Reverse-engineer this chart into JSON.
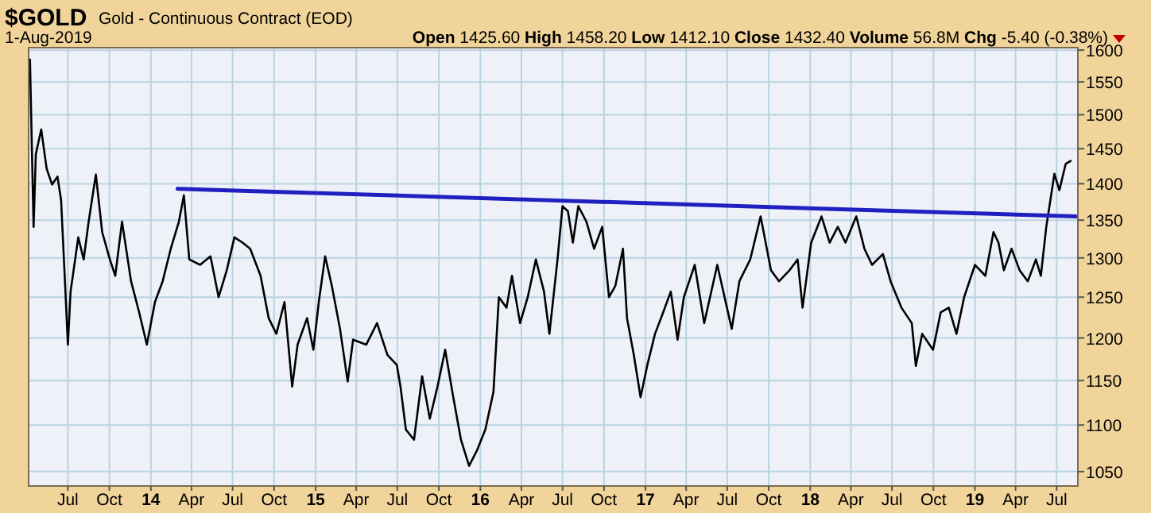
{
  "chart_data": {
    "type": "line",
    "title": "$GOLD",
    "subtitle": "Gold - Continuous Contract (EOD)",
    "annotations": [
      "1-Aug-2019",
      "Open 1425.60",
      "High 1458.20",
      "Low 1412.10",
      "Close 1432.40",
      "Volume 56.8M",
      "Chg -5.40 (-0.38%)"
    ],
    "log": "y",
    "grid": true,
    "marker": "none",
    "line_style": "solid",
    "xlim": [
      "2013-04-05",
      "2019-08-17"
    ],
    "xticks": [
      {
        "value": "2013-07-01",
        "label": "Jul"
      },
      {
        "value": "2013-10-01",
        "label": "Oct"
      },
      {
        "value": "2014-01-01",
        "label": "14"
      },
      {
        "value": "2014-04-01",
        "label": "Apr"
      },
      {
        "value": "2014-07-01",
        "label": "Jul"
      },
      {
        "value": "2014-10-01",
        "label": "Oct"
      },
      {
        "value": "2015-01-01",
        "label": "15"
      },
      {
        "value": "2015-04-01",
        "label": "Apr"
      },
      {
        "value": "2015-07-01",
        "label": "Jul"
      },
      {
        "value": "2015-10-01",
        "label": "Oct"
      },
      {
        "value": "2016-01-01",
        "label": "16"
      },
      {
        "value": "2016-04-01",
        "label": "Apr"
      },
      {
        "value": "2016-07-01",
        "label": "Jul"
      },
      {
        "value": "2016-10-01",
        "label": "Oct"
      },
      {
        "value": "2017-01-01",
        "label": "17"
      },
      {
        "value": "2017-04-01",
        "label": "Apr"
      },
      {
        "value": "2017-07-01",
        "label": "Jul"
      },
      {
        "value": "2017-10-01",
        "label": "Oct"
      },
      {
        "value": "2018-01-01",
        "label": "18"
      },
      {
        "value": "2018-04-01",
        "label": "Apr"
      },
      {
        "value": "2018-07-01",
        "label": "Jul"
      },
      {
        "value": "2018-10-01",
        "label": "Oct"
      },
      {
        "value": "2019-01-01",
        "label": "19"
      },
      {
        "value": "2019-04-01",
        "label": "Apr"
      },
      {
        "value": "2019-07-01",
        "label": "Jul"
      }
    ],
    "ylim": [
      1035,
      1604
    ],
    "yticks": [
      1050,
      1100,
      1150,
      1200,
      1250,
      1300,
      1350,
      1400,
      1450,
      1500,
      1550,
      1600
    ],
    "series": [
      {
        "color": "#000000",
        "x": [
          "2013-04-08",
          "2013-04-16",
          "2013-04-21",
          "2013-05-03",
          "2013-05-15",
          "2013-05-27",
          "2013-06-08",
          "2013-06-16",
          "2013-06-25",
          "2013-07-01",
          "2013-07-07",
          "2013-07-24",
          "2013-08-05",
          "2013-08-16",
          "2013-09-01",
          "2013-09-15",
          "2013-10-02",
          "2013-10-14",
          "2013-10-29",
          "2013-11-18",
          "2013-12-06",
          "2013-12-23",
          "2014-01-10",
          "2014-01-27",
          "2014-02-14",
          "2014-03-04",
          "2014-03-15",
          "2014-03-27",
          "2014-04-20",
          "2014-05-13",
          "2014-05-31",
          "2014-06-18",
          "2014-07-05",
          "2014-07-23",
          "2014-08-09",
          "2014-09-01",
          "2014-09-19",
          "2014-10-06",
          "2014-10-24",
          "2014-11-10",
          "2014-11-22",
          "2014-12-13",
          "2014-12-27",
          "2015-01-08",
          "2015-01-22",
          "2015-02-06",
          "2015-02-24",
          "2015-03-13",
          "2015-03-25",
          "2015-04-23",
          "2015-05-17",
          "2015-06-09",
          "2015-06-30",
          "2015-07-08",
          "2015-07-20",
          "2015-08-07",
          "2015-08-25",
          "2015-09-11",
          "2015-09-28",
          "2015-10-15",
          "2015-11-02",
          "2015-11-19",
          "2015-12-07",
          "2015-12-25",
          "2016-01-12",
          "2016-01-30",
          "2016-02-11",
          "2016-02-28",
          "2016-03-11",
          "2016-03-29",
          "2016-04-15",
          "2016-05-03",
          "2016-05-21",
          "2016-06-02",
          "2016-06-20",
          "2016-07-01",
          "2016-07-13",
          "2016-07-24",
          "2016-08-05",
          "2016-08-23",
          "2016-09-09",
          "2016-09-27",
          "2016-10-12",
          "2016-10-26",
          "2016-11-12",
          "2016-11-21",
          "2016-12-06",
          "2016-12-21",
          "2017-01-05",
          "2017-01-22",
          "2017-02-09",
          "2017-02-26",
          "2017-03-13",
          "2017-03-27",
          "2017-04-20",
          "2017-05-11",
          "2017-06-09",
          "2017-07-11",
          "2017-07-28",
          "2017-08-21",
          "2017-09-13",
          "2017-10-06",
          "2017-10-24",
          "2017-11-16",
          "2017-12-04",
          "2017-12-15",
          "2018-01-03",
          "2018-01-26",
          "2018-02-13",
          "2018-03-03",
          "2018-03-20",
          "2018-04-13",
          "2018-05-01",
          "2018-05-18",
          "2018-06-11",
          "2018-06-28",
          "2018-07-22",
          "2018-08-14",
          "2018-08-23",
          "2018-09-06",
          "2018-09-30",
          "2018-10-17",
          "2018-11-04",
          "2018-11-21",
          "2018-12-08",
          "2019-01-01",
          "2019-01-24",
          "2019-02-11",
          "2019-02-22",
          "2019-03-06",
          "2019-03-23",
          "2019-04-10",
          "2019-04-28",
          "2019-05-16",
          "2019-05-27",
          "2019-06-08",
          "2019-06-26",
          "2019-07-07",
          "2019-07-21",
          "2019-08-01"
        ],
        "values": [
          1585,
          1341,
          1442,
          1478,
          1421,
          1399,
          1410,
          1377,
          1264,
          1192,
          1257,
          1327,
          1298,
          1348,
          1413,
          1334,
          1298,
          1277,
          1348,
          1270,
          1231,
          1192,
          1244,
          1270,
          1312,
          1348,
          1384,
          1298,
          1291,
          1302,
          1250,
          1284,
          1327,
          1320,
          1312,
          1277,
          1224,
          1205,
          1244,
          1143,
          1192,
          1224,
          1186,
          1244,
          1302,
          1264,
          1211,
          1149,
          1198,
          1192,
          1218,
          1180,
          1168,
          1143,
          1095,
          1084,
          1155,
          1107,
          1143,
          1186,
          1131,
          1084,
          1056,
          1073,
          1095,
          1137,
          1250,
          1237,
          1277,
          1218,
          1250,
          1298,
          1257,
          1205,
          1298,
          1369,
          1362,
          1320,
          1369,
          1348,
          1312,
          1341,
          1250,
          1264,
          1312,
          1224,
          1180,
          1131,
          1168,
          1205,
          1231,
          1257,
          1198,
          1250,
          1291,
          1218,
          1291,
          1211,
          1270,
          1298,
          1355,
          1284,
          1270,
          1284,
          1298,
          1237,
          1320,
          1355,
          1320,
          1341,
          1320,
          1355,
          1312,
          1291,
          1305,
          1270,
          1237,
          1218,
          1167,
          1205,
          1186,
          1231,
          1237,
          1205,
          1250,
          1291,
          1277,
          1334,
          1320,
          1284,
          1312,
          1284,
          1270,
          1298,
          1277,
          1341,
          1414,
          1391,
          1428,
          1432.4
        ]
      },
      {
        "color": "#2020c0",
        "x": [
          "2014-03-01",
          "2019-08-13"
        ],
        "values": [
          1393,
          1355
        ]
      }
    ]
  }
}
